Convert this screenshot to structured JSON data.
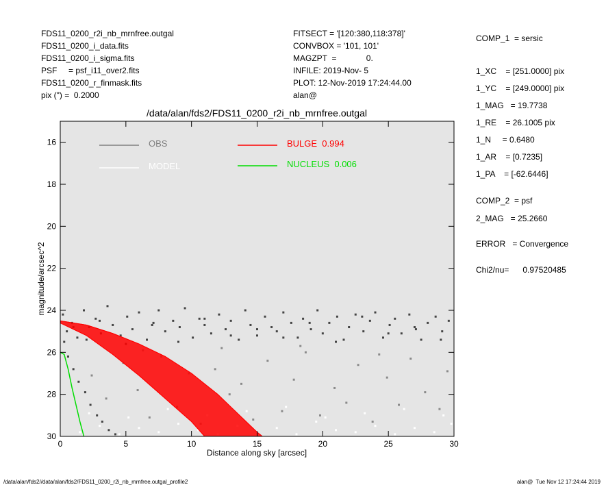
{
  "header": {
    "left": [
      "FDS11_0200_r2i_nb_mrnfree.outgal",
      "FDS11_0200_i_data.fits",
      "FDS11_0200_i_sigma.fits",
      "PSF     = psf_i11_over2.fits",
      "FDS11_0200_r_finmask.fits",
      "pix (\") =  0.2000"
    ],
    "middle": [
      "FITSECT = '[120:380,118:378]'",
      "CONVBOX = '101, 101'",
      "MAGZPT  =             0.",
      "INFILE: 2019-Nov- 5",
      "PLOT: 12-Nov-2019 17:24:44.00",
      "alan@"
    ],
    "right": [
      "COMP_1  = sersic",
      "1_XC    = [251.0000] pix",
      "1_YC    = [249.0000] pix",
      "1_MAG   = 19.7738",
      "1_RE    = 26.1005 pix",
      "1_N     = 0.6480",
      "1_AR    = [0.7235]",
      "1_PA    = [-62.6446]",
      "COMP_2  = psf",
      "2_MAG   = 25.2660",
      "ERROR   = Convergence",
      "Chi2/nu=      0.97520485"
    ]
  },
  "chart_data": {
    "type": "scatter",
    "title": "/data/alan/fds2/FDS11_0200_r2i_nb_mrnfree.outgal",
    "x_label": "Distance along sky [arcsec]",
    "y_label": "magnitude/arcsec^2",
    "xlim": [
      0,
      30
    ],
    "ylim": [
      30,
      15
    ],
    "xticks": [
      0,
      5,
      10,
      15,
      20,
      25,
      30
    ],
    "yticks": [
      16,
      18,
      20,
      22,
      24,
      26,
      28,
      30
    ],
    "background": "#e5e5e5",
    "series": [
      {
        "name": "OBS",
        "kind": "points",
        "color": "#444444",
        "x": [
          0.2,
          0.5,
          0.9,
          1.3,
          1.8,
          2.2,
          2.7,
          3.1,
          3.6,
          4.0,
          4.6,
          5.1,
          5.5,
          6.0,
          6.6,
          7.1,
          7.5,
          8.0,
          8.6,
          9.1,
          9.5,
          10.1,
          10.6,
          11.0,
          11.5,
          12.1,
          12.6,
          13.0,
          13.6,
          14.1,
          14.5,
          15.0,
          15.6,
          16.1,
          16.5,
          17.0,
          17.6,
          18.1,
          18.5,
          19.1,
          19.6,
          20.0,
          20.5,
          21.1,
          21.6,
          22.0,
          22.5,
          23.1,
          23.6,
          24.0,
          24.6,
          25.1,
          25.5,
          26.0,
          26.6,
          27.1,
          27.5,
          28.0,
          28.6,
          29.1,
          29.6,
          0.3,
          0.6,
          1.0,
          1.4,
          1.9,
          2.3,
          2.8,
          3.2,
          3.7,
          4.2,
          1,
          2,
          3,
          5,
          7,
          9,
          11,
          13,
          15,
          17,
          19,
          21,
          23,
          25,
          27,
          29
        ],
        "values": [
          24.2,
          25.0,
          24.6,
          25.3,
          24.0,
          24.8,
          24.4,
          25.1,
          23.8,
          24.7,
          25.2,
          24.3,
          24.9,
          24.1,
          25.4,
          24.6,
          24.0,
          25.0,
          24.5,
          24.8,
          23.9,
          25.3,
          24.4,
          24.7,
          25.1,
          24.2,
          24.9,
          24.5,
          25.4,
          24.0,
          24.7,
          25.2,
          24.3,
          24.8,
          25.0,
          24.1,
          24.6,
          25.3,
          24.4,
          24.9,
          24.0,
          25.1,
          24.6,
          24.3,
          25.4,
          24.8,
          24.2,
          25.0,
          24.5,
          24.1,
          25.3,
          24.7,
          24.4,
          25.1,
          24.2,
          24.9,
          25.4,
          24.6,
          24.3,
          25.0,
          24.5,
          25.5,
          26.2,
          26.8,
          27.4,
          27.9,
          28.5,
          29.0,
          29.3,
          29.7,
          29.9,
          24.8,
          25.4,
          24.5,
          25.6,
          24.7,
          25.5,
          24.4,
          25.2,
          24.9,
          25.3,
          24.6,
          25.5,
          24.3,
          25.1,
          24.8,
          25.4
        ]
      },
      {
        "kind": "points",
        "color": "#8a8a8a",
        "x": [
          2.4,
          3.5,
          4.8,
          5.9,
          6.8,
          7.7,
          8.9,
          9.8,
          10.7,
          11.8,
          12.9,
          13.8,
          14.7,
          15.8,
          16.9,
          17.8,
          18.7,
          19.8,
          20.9,
          21.8,
          22.7,
          23.8,
          24.9,
          25.8,
          26.7,
          27.8,
          28.9,
          29.5,
          6.3,
          12.3,
          18.3,
          24.3
        ],
        "values": [
          27.1,
          28.2,
          26.5,
          27.8,
          29.1,
          26.2,
          28.6,
          27.0,
          29.4,
          26.8,
          28.0,
          27.5,
          29.2,
          26.4,
          28.8,
          27.3,
          26.0,
          29.0,
          27.7,
          28.4,
          26.6,
          29.3,
          27.2,
          28.5,
          26.3,
          27.9,
          28.7,
          26.9,
          25.9,
          25.8,
          25.7,
          26.1
        ]
      },
      {
        "name": "MODEL",
        "kind": "points",
        "color": "#ffffff",
        "x": [
          1.5,
          3.0,
          4.5,
          6.0,
          7.5,
          9.0,
          10.5,
          12.0,
          13.5,
          15.0,
          16.5,
          18.0,
          19.5,
          21.0,
          22.5,
          24.0,
          25.5,
          27.0,
          28.5,
          29.8,
          2.2,
          5.2,
          8.2,
          11.2,
          14.2,
          17.2,
          20.2,
          23.2,
          26.2,
          29.2
        ],
        "values": [
          29.8,
          29.5,
          29.9,
          29.6,
          29.8,
          29.4,
          29.7,
          29.9,
          29.5,
          29.8,
          29.6,
          29.9,
          29.3,
          29.7,
          29.8,
          29.5,
          29.9,
          29.6,
          29.8,
          29.4,
          28.9,
          29.1,
          28.7,
          29.0,
          28.8,
          28.6,
          29.1,
          28.9,
          28.7,
          29.0
        ]
      },
      {
        "name": "BULGE  0.994",
        "kind": "band",
        "color": "#ff0000",
        "x": [
          0,
          2,
          4,
          6,
          8,
          10,
          11,
          12,
          13,
          14,
          15,
          15.4
        ],
        "values": [
          24.5,
          24.7,
          25.1,
          25.6,
          26.2,
          27.0,
          27.5,
          28.0,
          28.6,
          29.2,
          29.8,
          30
        ],
        "low": [
          24.6,
          25.2,
          26.1,
          27.1,
          28.2,
          29.3,
          30,
          30,
          30,
          30,
          30,
          30
        ]
      },
      {
        "name": "NUCLEUS  0.006",
        "kind": "line",
        "color": "#00dd00",
        "x": [
          0,
          0.3,
          0.6,
          0.9,
          1.2,
          1.5,
          1.8
        ],
        "values": [
          26.0,
          26.1,
          26.8,
          27.7,
          28.5,
          29.3,
          30
        ]
      }
    ]
  },
  "footer": {
    "left": "/data/alan/fds2//data/alan/fds2/FDS11_0200_r2i_nb_mrnfree.outgal_profile2",
    "right": "alan@  Tue Nov 12 17:24:44 2019"
  }
}
